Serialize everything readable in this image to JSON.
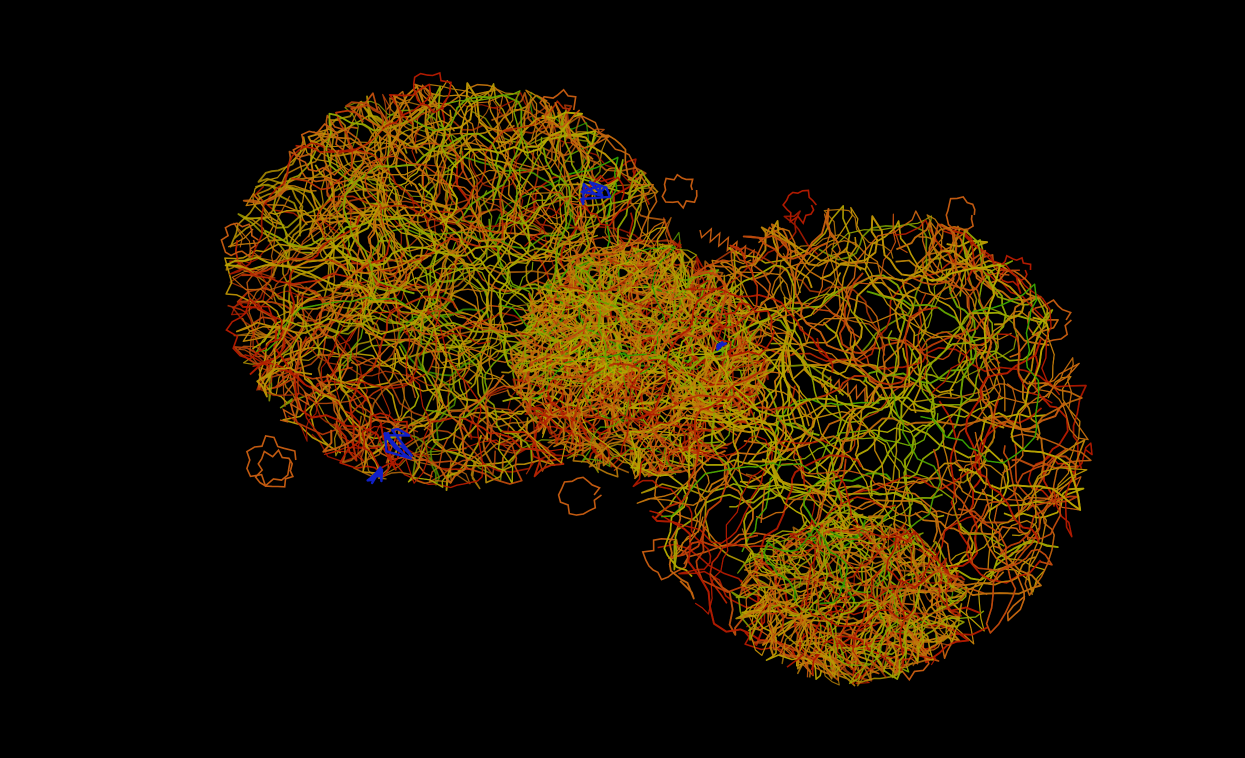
{
  "scene": {
    "background_color": "#000000",
    "subject": "molecular-backbone-trace",
    "color_scheme": {
      "low": "#2fa000",
      "mid": "#b8a800",
      "high_a": "#c25a10",
      "high_b": "#b01a00",
      "ligand": "#1020c8"
    },
    "lobes": [
      {
        "name": "left-lobe"
      },
      {
        "name": "right-lobe"
      }
    ]
  }
}
